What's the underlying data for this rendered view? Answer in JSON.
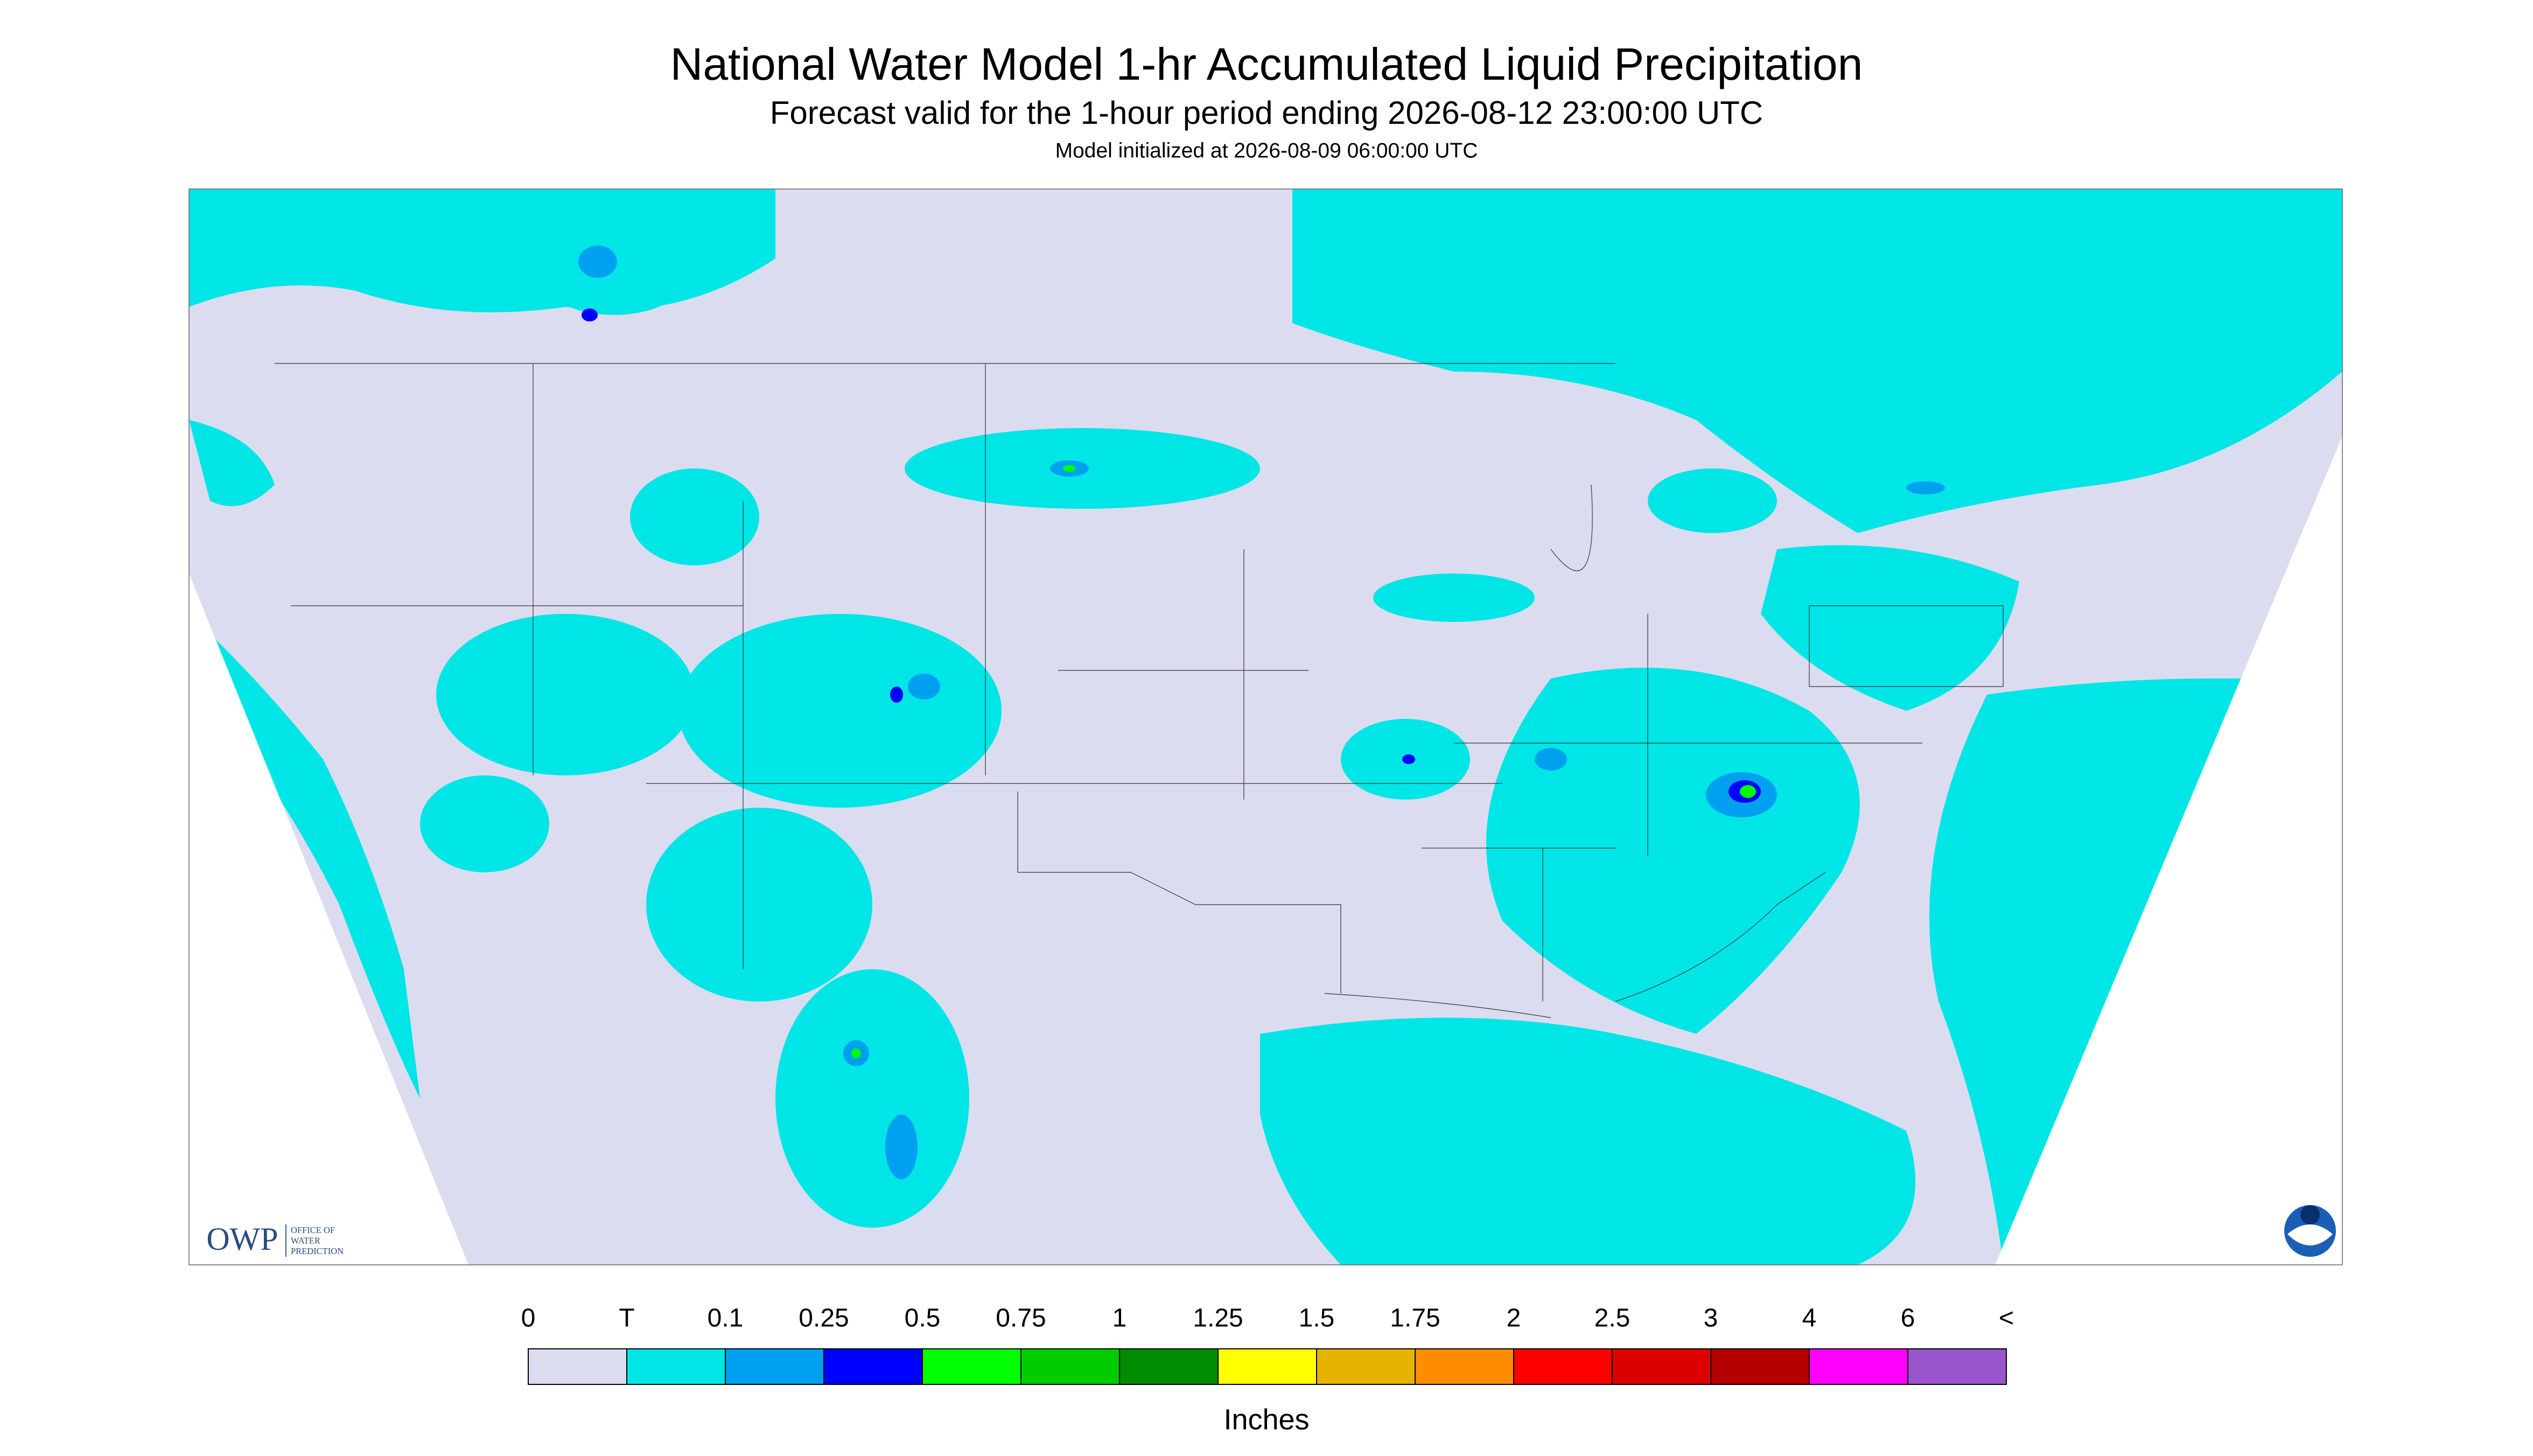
{
  "header": {
    "title": "National Water Model 1-hr Accumulated Liquid Precipitation",
    "subtitle": "Forecast valid for the 1-hour period ending 2026-08-12 23:00:00 UTC",
    "init": "Model initialized at 2026-08-09 06:00:00 UTC"
  },
  "logo": {
    "name": "OWP",
    "line1": "OFFICE OF",
    "line2": "WATER",
    "line3": "PREDICTION"
  },
  "legend": {
    "labels": [
      "0",
      "T",
      "0.1",
      "0.25",
      "0.5",
      "0.75",
      "1",
      "1.25",
      "1.5",
      "1.75",
      "2",
      "2.5",
      "3",
      "4",
      "6",
      "<"
    ],
    "colors": [
      "#dcdcf0",
      "#00e6e6",
      "#00a0f0",
      "#0000ff",
      "#00ff00",
      "#00cc00",
      "#008c00",
      "#ffff00",
      "#e6b400",
      "#ff8c00",
      "#ff0000",
      "#dc0000",
      "#b40000",
      "#ff00ff",
      "#9955cc"
    ],
    "unit": "Inches"
  }
}
